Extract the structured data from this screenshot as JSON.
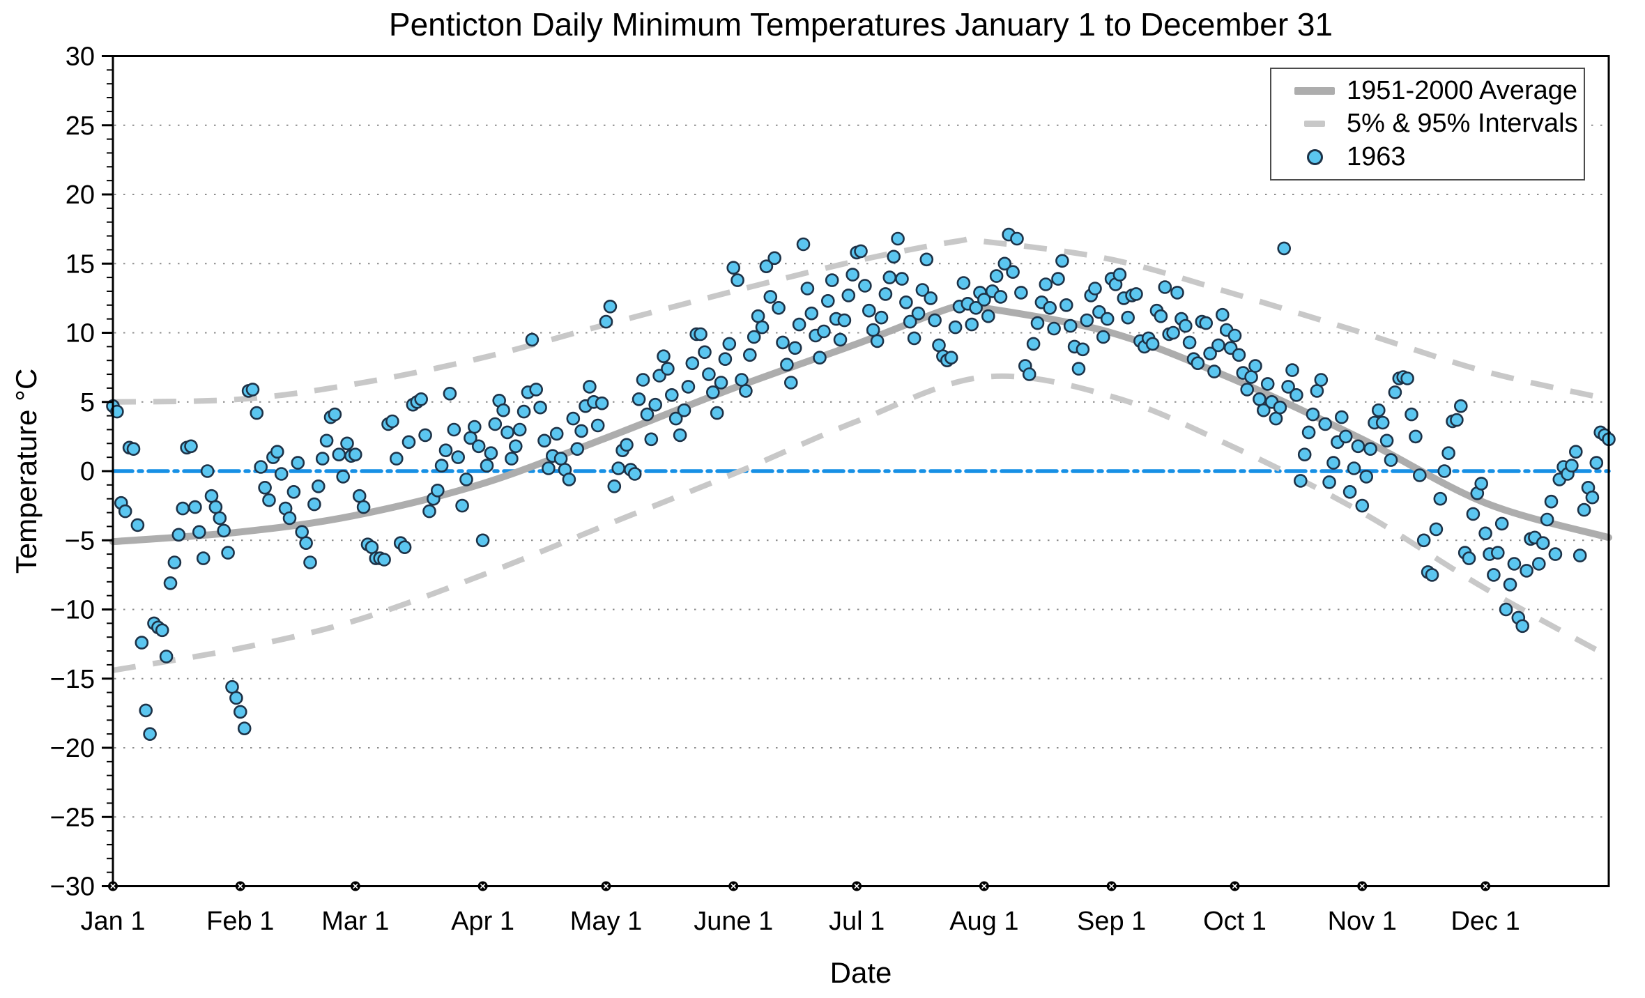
{
  "title": "Penticton Daily Minimum Temperatures January 1 to December 31",
  "axes": {
    "x_label": "Date",
    "y_label": "Temperature °C",
    "y_ticks": [
      30,
      25,
      20,
      15,
      10,
      5,
      0,
      -5,
      -10,
      -15,
      -20,
      -25,
      -30
    ],
    "y_minor_step": 1,
    "y_range": [
      -30,
      30
    ],
    "x_month_labels": [
      "Jan 1",
      "Feb 1",
      "Mar 1",
      "Apr 1",
      "May 1",
      "June 1",
      "Jul 1",
      "Aug 1",
      "Sep 1",
      "Oct 1",
      "Nov 1",
      "Dec 1"
    ],
    "month_start_days": [
      0,
      31,
      59,
      90,
      120,
      151,
      181,
      212,
      243,
      273,
      304,
      334
    ]
  },
  "legend": {
    "items": [
      {
        "label": "1951-2000 Average",
        "swatch": "thick-gray-line"
      },
      {
        "label": "5% & 95% Intervals",
        "swatch": "gray-dash"
      },
      {
        "label": "1963",
        "swatch": "blue-circle-marker"
      }
    ]
  },
  "colors": {
    "scatter_fill": "#5bc6f0",
    "scatter_edge": "#1d3247",
    "zero_line": "#1790e5",
    "average_line": "#adadad",
    "interval_dash": "#c8c8c8",
    "gridline": "#8c8c8c",
    "axis": "#000000",
    "month_dot": "#000000"
  },
  "chart_data": {
    "type": "scatter",
    "title": "Penticton Daily Minimum Temperatures January 1 to December 31",
    "xlabel": "Date",
    "ylabel": "Temperature °C",
    "ylim": [
      -30,
      30
    ],
    "x_axis_units": "day of year (Jan 1 = day 0, Dec 31 = day 364)",
    "grid": "dotted horizontal gridlines every 5 C",
    "legend_position": "upper right",
    "zero_reference_line_c": 0,
    "average_1951_2000": {
      "x_days": [
        0,
        31,
        59,
        90,
        120,
        151,
        181,
        205,
        212,
        243,
        273,
        304,
        334,
        364
      ],
      "values_c": [
        -5.1,
        -4.4,
        -3.2,
        -0.9,
        2.4,
        6.0,
        9.2,
        11.9,
        11.8,
        10.0,
        6.6,
        2.3,
        -2.3,
        -4.8
      ]
    },
    "interval_95pct": {
      "x_days": [
        0,
        31,
        59,
        90,
        120,
        151,
        181,
        205,
        212,
        243,
        273,
        304,
        334,
        364
      ],
      "values_c": [
        5.0,
        5.2,
        6.3,
        8.2,
        10.6,
        13.0,
        15.2,
        16.6,
        16.6,
        15.3,
        12.8,
        10.0,
        7.2,
        5.2
      ]
    },
    "interval_5pct": {
      "x_days": [
        0,
        31,
        59,
        90,
        120,
        151,
        181,
        212,
        243,
        273,
        304,
        334,
        364
      ],
      "values_c": [
        -14.4,
        -12.8,
        -10.8,
        -7.5,
        -3.9,
        -0.2,
        3.6,
        6.8,
        5.4,
        1.7,
        -3.0,
        -8.5,
        -13.4
      ]
    },
    "scatter_1963": {
      "series_name": "1963",
      "month_order": [
        "Jan",
        "Feb",
        "Mar",
        "Apr",
        "May",
        "Jun",
        "Jul",
        "Aug",
        "Sep",
        "Oct",
        "Nov",
        "Dec"
      ],
      "daily_min_c": {
        "Jan": [
          4.7,
          4.3,
          -2.3,
          -2.9,
          1.7,
          1.6,
          -3.9,
          -12.4,
          -17.3,
          -19.0,
          -11.0,
          -11.3,
          -11.5,
          -13.4,
          -8.1,
          -6.6,
          -4.6,
          -2.7,
          1.7,
          1.8,
          -2.6,
          -4.4,
          -6.3,
          0.0,
          -1.8,
          -2.6,
          -3.4,
          -4.3,
          -5.9,
          -15.6,
          -16.4
        ],
        "Feb": [
          -17.4,
          -18.6,
          5.8,
          5.9,
          4.2,
          0.3,
          -1.2,
          -2.1,
          1.0,
          1.4,
          -0.2,
          -2.7,
          -3.4,
          -1.5,
          0.6,
          -4.4,
          -5.2,
          -6.6,
          -2.4,
          -1.1,
          0.9,
          2.2,
          3.9,
          4.1,
          1.2,
          -0.4,
          2.0,
          1.1
        ],
        "Mar": [
          1.2,
          -1.8,
          -2.6,
          -5.3,
          -5.5,
          -6.3,
          -6.3,
          -6.4,
          3.4,
          3.6,
          0.9,
          -5.2,
          -5.5,
          2.1,
          4.8,
          5.0,
          5.2,
          2.6,
          -2.9,
          -2.0,
          -1.4,
          0.4,
          1.5,
          5.6,
          3.0,
          1.0,
          -2.5,
          -0.6,
          2.4,
          3.2,
          1.8
        ],
        "Apr": [
          -5.0,
          0.4,
          1.3,
          3.4,
          5.1,
          4.4,
          2.8,
          0.9,
          1.8,
          3.0,
          4.3,
          5.7,
          9.5,
          5.9,
          4.6,
          2.2,
          0.2,
          1.1,
          2.7,
          0.9,
          0.1,
          -0.6,
          3.8,
          1.6,
          2.9,
          4.7,
          6.1,
          5.0,
          3.3,
          4.9
        ],
        "May": [
          10.8,
          11.9,
          -1.1,
          0.2,
          1.5,
          1.9,
          0.1,
          -0.2,
          5.2,
          6.6,
          4.1,
          2.3,
          4.8,
          6.9,
          8.3,
          7.4,
          5.5,
          3.8,
          2.6,
          4.4,
          6.1,
          7.8,
          9.9,
          9.9,
          8.6,
          7.0,
          5.7,
          4.2,
          6.4,
          8.1,
          9.2
        ],
        "Jun": [
          14.7,
          13.8,
          6.6,
          5.8,
          8.4,
          9.7,
          11.2,
          10.4,
          14.8,
          12.6,
          15.4,
          11.8,
          9.3,
          7.7,
          6.4,
          8.9,
          10.6,
          16.4,
          13.2,
          11.4,
          9.8,
          8.2,
          10.1,
          12.3,
          13.8,
          11.0,
          9.5,
          10.9,
          12.7,
          14.2
        ],
        "Jul": [
          15.8,
          15.9,
          13.4,
          11.6,
          10.2,
          9.4,
          11.1,
          12.8,
          14.0,
          15.5,
          16.8,
          13.9,
          12.2,
          10.8,
          9.6,
          11.4,
          13.1,
          15.3,
          12.5,
          10.9,
          9.1,
          8.3,
          8.0,
          8.2,
          10.4,
          11.9,
          13.6,
          12.1,
          10.6,
          11.8,
          12.9
        ],
        "Aug": [
          12.4,
          11.2,
          13.0,
          14.1,
          12.6,
          15.0,
          17.1,
          14.4,
          16.8,
          12.9,
          7.6,
          7.0,
          9.2,
          10.7,
          12.2,
          13.5,
          11.8,
          10.3,
          13.9,
          15.2,
          12.0,
          10.5,
          9.0,
          7.4,
          8.8,
          10.9,
          12.7,
          13.2,
          11.5,
          9.7,
          11.0
        ],
        "Sep": [
          13.9,
          13.5,
          14.2,
          12.5,
          11.1,
          12.7,
          12.8,
          9.4,
          9.0,
          9.6,
          9.2,
          11.6,
          11.2,
          13.3,
          9.9,
          10.0,
          12.9,
          11.0,
          10.5,
          9.3,
          8.1,
          7.8,
          10.8,
          10.7,
          8.5,
          7.2,
          9.1,
          11.3,
          10.2,
          8.9
        ],
        "Oct": [
          9.8,
          8.4,
          7.1,
          5.9,
          6.8,
          7.6,
          5.2,
          4.4,
          6.3,
          5.0,
          3.8,
          4.6,
          16.1,
          6.1,
          7.3,
          5.5,
          -0.7,
          1.2,
          2.8,
          4.1,
          5.8,
          6.6,
          3.4,
          -0.8,
          0.6,
          2.1,
          3.9,
          2.5,
          -1.5,
          0.2,
          1.8
        ],
        "Nov": [
          -2.5,
          -0.4,
          1.6,
          3.5,
          4.4,
          3.5,
          2.2,
          0.8,
          5.7,
          6.7,
          6.8,
          6.7,
          4.1,
          2.5,
          -0.3,
          -5.0,
          -7.3,
          -7.5,
          -4.2,
          -2.0,
          0.0,
          1.3,
          3.6,
          3.7,
          4.7,
          -5.9,
          -6.3,
          -3.1,
          -1.6,
          -0.9
        ],
        "Dec": [
          -4.5,
          -6.0,
          -7.5,
          -5.9,
          -3.8,
          -10.0,
          -8.2,
          -6.7,
          -10.6,
          -11.2,
          -7.2,
          -4.9,
          -4.8,
          -6.7,
          -5.2,
          -3.5,
          -2.2,
          -6.0,
          -0.6,
          0.3,
          -0.2,
          0.4,
          1.4,
          -6.1,
          -2.8,
          -1.2,
          -1.9,
          0.6,
          2.8,
          2.6,
          2.3
        ]
      }
    }
  }
}
